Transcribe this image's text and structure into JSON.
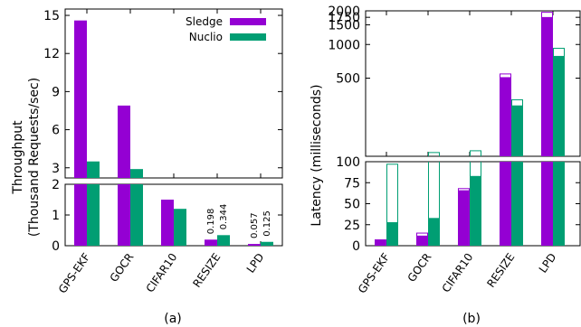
{
  "chart_data": [
    {
      "type": "bar",
      "caption": "(a)",
      "ylabel": "Throughput",
      "ylabel2": "(Thousand Requests/sec)",
      "categories": [
        "GPS-EKF",
        "GOCR",
        "CIFAR10",
        "RESIZE",
        "LPD"
      ],
      "series": [
        {
          "name": "Sledge",
          "color": "#9400d3",
          "values": [
            14.6,
            7.9,
            1.5,
            0.198,
            0.057
          ]
        },
        {
          "name": "Nuclio",
          "color": "#009e73",
          "values": [
            3.5,
            2.9,
            1.2,
            0.344,
            0.125
          ]
        }
      ],
      "data_labels": [
        {
          "category": "RESIZE",
          "series": "Sledge",
          "text": "0.198"
        },
        {
          "category": "RESIZE",
          "series": "Nuclio",
          "text": "0.344"
        },
        {
          "category": "LPD",
          "series": "Sledge",
          "text": "0.057"
        },
        {
          "category": "LPD",
          "series": "Nuclio",
          "text": "0.125"
        }
      ],
      "broken_axis": {
        "upper": {
          "ylim": [
            2.2,
            15.5
          ],
          "ticks": [
            "3",
            "6",
            "9",
            "12",
            "15"
          ],
          "tick_values": [
            3,
            6,
            9,
            12,
            15
          ]
        },
        "lower": {
          "ylim": [
            0,
            2
          ],
          "ticks": [
            "0",
            "1",
            "2"
          ],
          "tick_values": [
            0,
            1,
            2
          ]
        }
      },
      "legend": {
        "placement": "top-right",
        "entries": [
          "Sledge",
          "Nuclio"
        ]
      },
      "grid": false
    },
    {
      "type": "bar",
      "caption": "(b)",
      "ylabel": "Latency (milliseconds)",
      "categories": [
        "GPS-EKF",
        "GOCR",
        "CIFAR10",
        "RESIZE",
        "LPD"
      ],
      "series": [
        {
          "name": "Sledge avg",
          "color": "#9400d3",
          "values": [
            7,
            12,
            66,
            510,
            1760
          ]
        },
        {
          "name": "Nuclio avg",
          "color": "#009e73",
          "values": [
            28,
            33,
            83,
            285,
            790
          ]
        }
      ],
      "tail_series": [
        {
          "name": "Sledge tail",
          "color": "#9400d3",
          "values": [
            7,
            15,
            68,
            545,
            1940
          ]
        },
        {
          "name": "Nuclio tail",
          "color": "#009e73",
          "values": [
            97,
            108,
            112,
            320,
            925
          ]
        }
      ],
      "broken_axis": {
        "upper": {
          "ylim": [
            100,
            2000
          ],
          "ticks": [
            "500",
            "1000",
            "1500",
            "1750",
            "2000"
          ],
          "tick_values": [
            500,
            1000,
            1500,
            1750,
            2000
          ],
          "scale": "log"
        },
        "lower": {
          "ylim": [
            0,
            100
          ],
          "ticks": [
            "0",
            "25",
            "50",
            "75",
            "100"
          ],
          "tick_values": [
            0,
            25,
            50,
            75,
            100
          ]
        }
      },
      "grid": false
    }
  ]
}
